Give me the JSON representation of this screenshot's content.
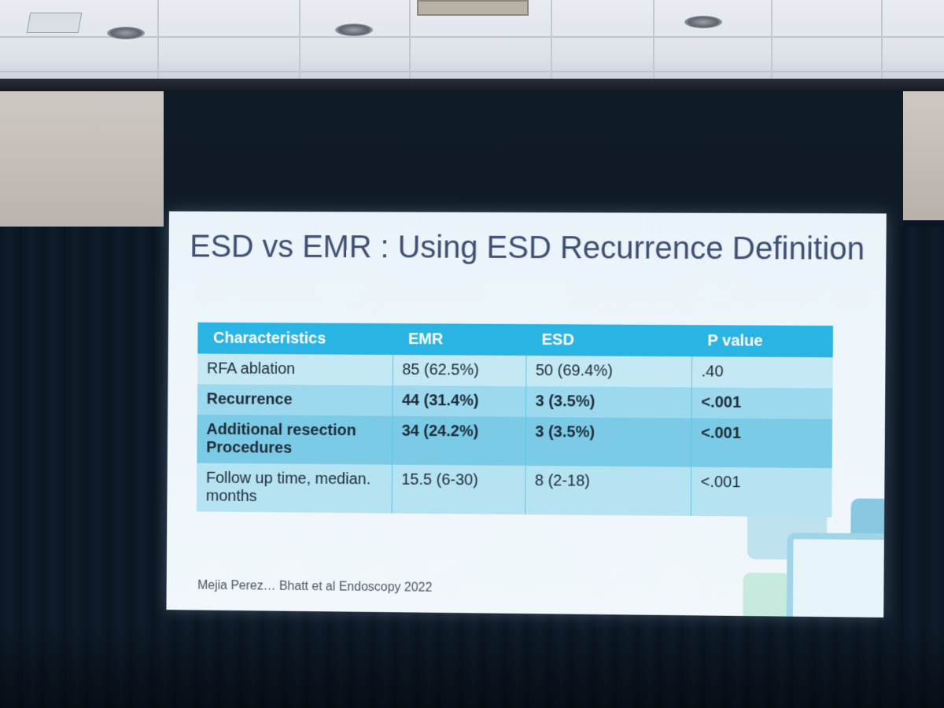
{
  "slide": {
    "title": "ESD vs EMR : Using ESD Recurrence Definition",
    "table": {
      "headers": [
        "Characteristics",
        "EMR",
        "ESD",
        "P value"
      ],
      "rows": [
        [
          "RFA ablation",
          "85 (62.5%)",
          "50 (69.4%)",
          ".40"
        ],
        [
          "Recurrence",
          "44 (31.4%)",
          "3 (3.5%)",
          "<.001"
        ],
        [
          "Additional resection Procedures",
          "34 (24.2%)",
          "3 (3.5%)",
          "<.001"
        ],
        [
          "Follow up time, median. months",
          "15.5 (6-30)",
          "8 (2-18)",
          "<.001"
        ]
      ]
    },
    "citation": "Mejia Perez… Bhatt et al Endoscopy 2022"
  }
}
